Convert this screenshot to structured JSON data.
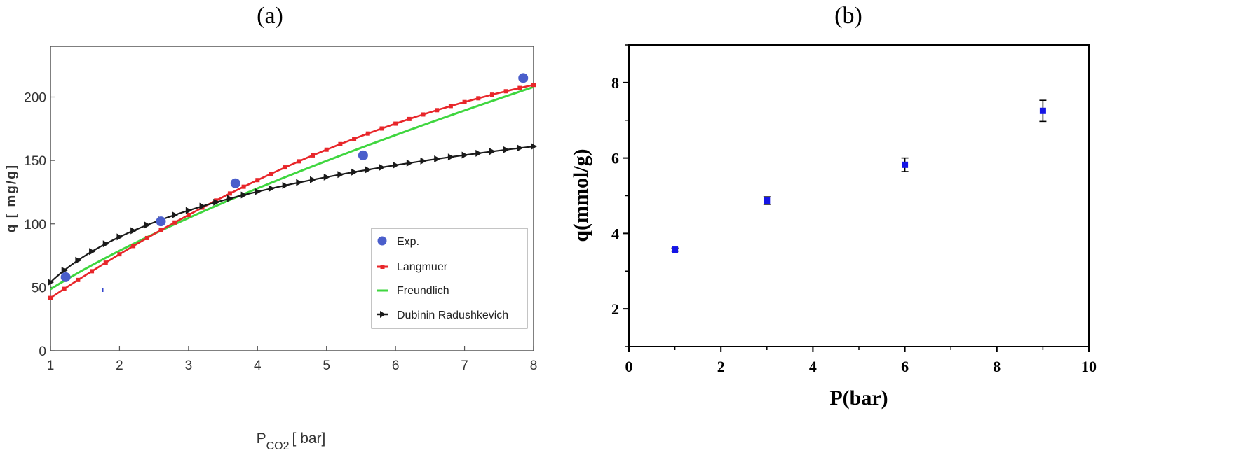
{
  "chart_data": [
    {
      "panel_label": "(a)",
      "type": "scatter",
      "xlabel": "P",
      "xlabel_sub": "CO2",
      "xlabel_unit": "[ bar]",
      "ylabel": "q [ mg/g]",
      "xlim": [
        1,
        8
      ],
      "ylim": [
        0,
        240
      ],
      "xticks": [
        1,
        2,
        3,
        4,
        5,
        6,
        7,
        8
      ],
      "yticks": [
        0,
        50,
        100,
        150,
        200
      ],
      "grid": false,
      "legend_position": "bottom-right",
      "series": [
        {
          "name": "Exp.",
          "kind": "points",
          "color": "#4a5ecb",
          "x": [
            1.22,
            2.6,
            3.68,
            5.53,
            7.85
          ],
          "y": [
            58,
            102,
            132,
            154,
            215
          ]
        },
        {
          "name": "Langmuer",
          "kind": "line-square-markers",
          "color": "#e8262a",
          "model": {
            "a": 41.6,
            "b": 1.8,
            "k": 0.027
          }
        },
        {
          "name": "Freundlich",
          "kind": "line",
          "color": "#3fd63f",
          "model": {
            "c": 48.5,
            "n": 0.7
          }
        },
        {
          "name": "Dubinin Radushkevich",
          "kind": "line-triangle-markers",
          "color": "#1a1a1a",
          "model": {
            "a": 54,
            "b": 51.5
          }
        }
      ]
    },
    {
      "panel_label": "(b)",
      "type": "scatter",
      "xlabel": "P(bar)",
      "ylabel": "q(mmol/g)",
      "xlim": [
        0,
        10
      ],
      "ylim": [
        1,
        9
      ],
      "xticks": [
        0,
        2,
        4,
        6,
        8,
        10
      ],
      "yticks": [
        2,
        4,
        6,
        8
      ],
      "grid": false,
      "series": [
        {
          "kind": "points-errorbars",
          "color": "#1515e6",
          "x": [
            1,
            3,
            6,
            9
          ],
          "y": [
            3.57,
            4.87,
            5.82,
            7.25
          ],
          "err": [
            0.04,
            0.1,
            0.18,
            0.28
          ]
        }
      ]
    }
  ]
}
